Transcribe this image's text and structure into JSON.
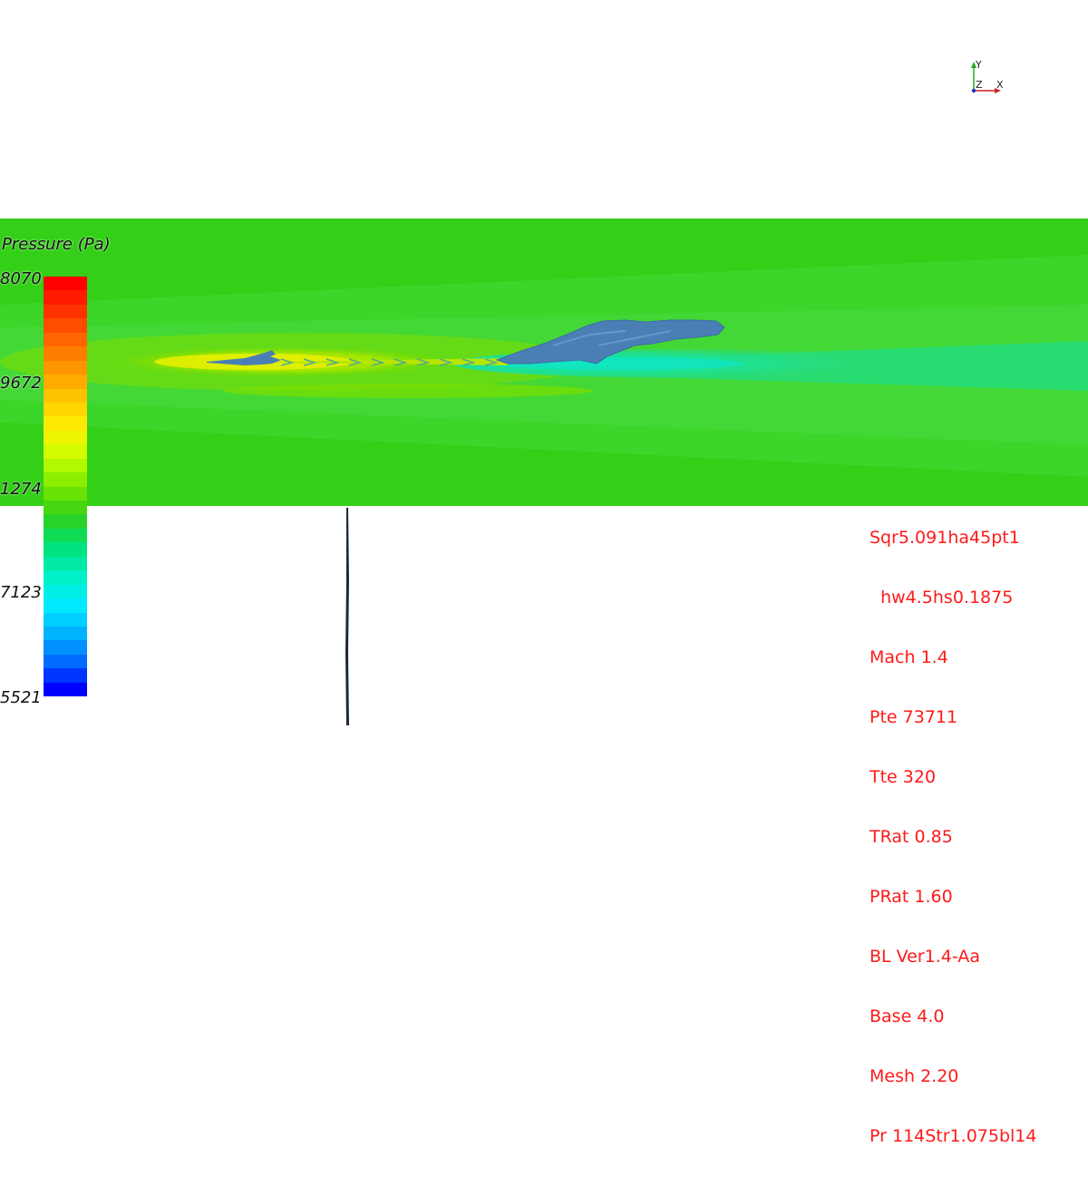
{
  "legend": {
    "title": "Pressure (Pa)",
    "ticks": [
      "8070",
      "9672",
      "1274",
      "7123",
      "5521"
    ]
  },
  "info_lines": [
    "Sqr5.091ha45pt1",
    "  hw4.5hs0.1875",
    "Mach 1.4",
    "Pte 73711",
    "Tte 320",
    "TRat 0.85",
    "PRat 1.60",
    "BL Ver1.4-Aa",
    "Base 4.0",
    "Mesh 2.20",
    "Pr 114Str1.075bl14"
  ],
  "axes": {
    "y": "Y",
    "z": "Z",
    "x": "X"
  },
  "colors": {
    "info_text": "#ff1a1a",
    "field_background": "#33d017",
    "isosurface": "#4a7fb6",
    "colormap": [
      "#ff0000",
      "#ff3500",
      "#ff6a00",
      "#ff9a00",
      "#ffc800",
      "#fff000",
      "#c8ff00",
      "#7ae800",
      "#33d017",
      "#00e070",
      "#00f0c0",
      "#00f0ff",
      "#00b8ff",
      "#0070ff",
      "#0000ff"
    ]
  }
}
